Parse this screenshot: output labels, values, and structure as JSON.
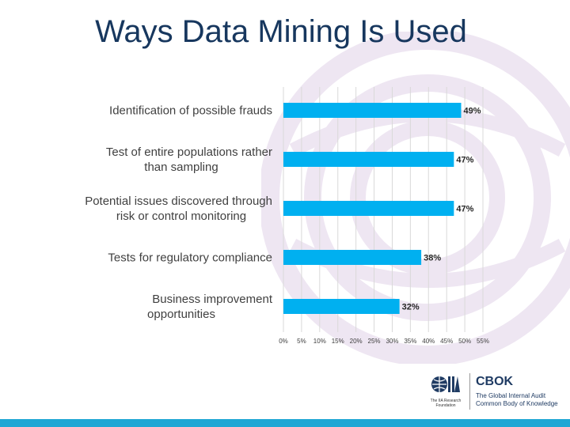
{
  "slide": {
    "title": "Ways Data Mining Is Used"
  },
  "colors": {
    "bar": "#00b0f0",
    "title": "#17375e",
    "gridline": "#d9d9d9",
    "watermark": "#eee6f2",
    "footer_bar": "#1fa7d4"
  },
  "chart_data": {
    "type": "bar",
    "orientation": "horizontal",
    "categories": [
      [
        "Identification of possible frauds"
      ],
      [
        "Test of entire populations rather",
        "than sampling"
      ],
      [
        "Potential issues discovered through",
        "risk or control monitoring"
      ],
      [
        "Tests for regulatory compliance"
      ],
      [
        "Business improvement",
        "opportunities"
      ]
    ],
    "values": [
      49,
      47,
      47,
      38,
      32
    ],
    "value_labels": [
      "49%",
      "47%",
      "47%",
      "38%",
      "32%"
    ],
    "x_ticks": [
      0,
      5,
      10,
      15,
      20,
      25,
      30,
      35,
      40,
      45,
      50,
      55
    ],
    "x_tick_labels": [
      "0%",
      "5%",
      "10%",
      "15%",
      "20%",
      "25%",
      "30%",
      "35%",
      "40%",
      "45%",
      "50%",
      "55%"
    ],
    "xlim": [
      0,
      55
    ],
    "grid": true,
    "legend": false
  },
  "logos": {
    "iia_caption": "The IIA Research Foundation",
    "cbok_title": "CBOK",
    "cbok_subtitle": "The Global Internal Audit Common Body of Knowledge"
  }
}
